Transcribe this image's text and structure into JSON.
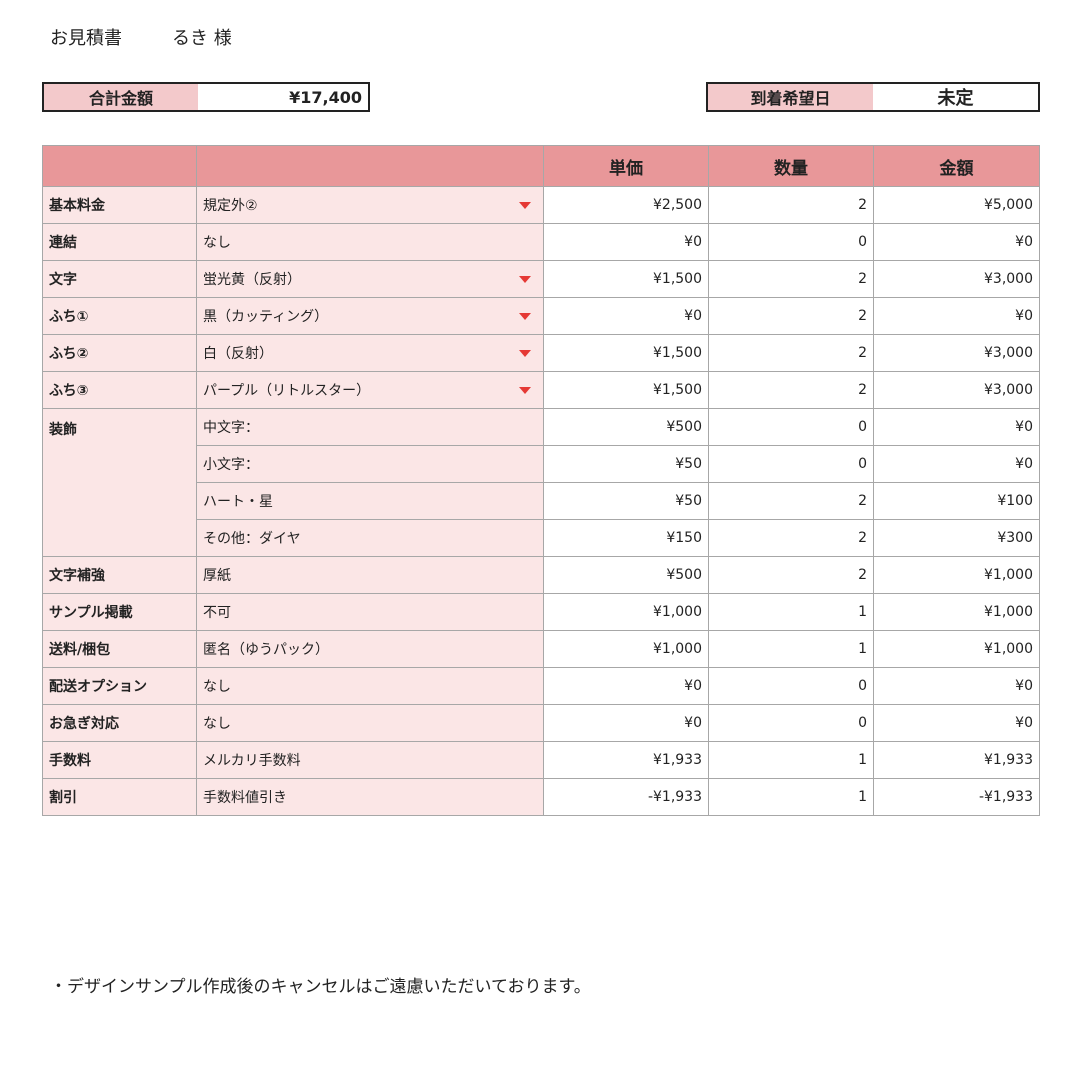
{
  "header": {
    "title": "お見積書",
    "customer": "るき 様"
  },
  "total": {
    "label": "合計金額",
    "value": "¥17,400"
  },
  "arrival": {
    "label": "到着希望日",
    "value": "未定"
  },
  "table": {
    "columns": [
      "",
      "",
      "単価",
      "数量",
      "金額"
    ],
    "rows": [
      {
        "label": "基本料金",
        "item": "規定外②",
        "dropdown": true,
        "price": "¥2,500",
        "qty": "2",
        "amount": "¥5,000"
      },
      {
        "label": "連結",
        "item": "なし",
        "dropdown": false,
        "price": "¥0",
        "qty": "0",
        "amount": "¥0"
      },
      {
        "label": "文字",
        "item": "蛍光黄（反射）",
        "dropdown": true,
        "price": "¥1,500",
        "qty": "2",
        "amount": "¥3,000"
      },
      {
        "label": "ふち①",
        "item": "黒（カッティング）",
        "dropdown": true,
        "price": "¥0",
        "qty": "2",
        "amount": "¥0"
      },
      {
        "label": "ふち②",
        "item": "白（反射）",
        "dropdown": true,
        "price": "¥1,500",
        "qty": "2",
        "amount": "¥3,000"
      },
      {
        "label": "ふち③",
        "item": "パープル（リトルスター）",
        "dropdown": true,
        "price": "¥1,500",
        "qty": "2",
        "amount": "¥3,000"
      },
      {
        "label": "装飾",
        "item": "中文字：",
        "dropdown": false,
        "price": "¥500",
        "qty": "0",
        "amount": "¥0"
      },
      {
        "label": "",
        "item": "小文字：",
        "dropdown": false,
        "price": "¥50",
        "qty": "0",
        "amount": "¥0"
      },
      {
        "label": "",
        "item": "ハート・星",
        "dropdown": false,
        "price": "¥50",
        "qty": "2",
        "amount": "¥100"
      },
      {
        "label": "",
        "item": "その他：ダイヤ",
        "dropdown": false,
        "price": "¥150",
        "qty": "2",
        "amount": "¥300"
      },
      {
        "label": "文字補強",
        "item": "厚紙",
        "dropdown": false,
        "price": "¥500",
        "qty": "2",
        "amount": "¥1,000"
      },
      {
        "label": "サンプル掲載",
        "item": "不可",
        "dropdown": false,
        "price": "¥1,000",
        "qty": "1",
        "amount": "¥1,000"
      },
      {
        "label": "送料/梱包",
        "item": "匿名（ゆうパック）",
        "dropdown": false,
        "price": "¥1,000",
        "qty": "1",
        "amount": "¥1,000"
      },
      {
        "label": "配送オプション",
        "item": "なし",
        "dropdown": false,
        "price": "¥0",
        "qty": "0",
        "amount": "¥0"
      },
      {
        "label": "お急ぎ対応",
        "item": "なし",
        "dropdown": false,
        "price": "¥0",
        "qty": "0",
        "amount": "¥0"
      },
      {
        "label": "手数料",
        "item": "メルカリ手数料",
        "dropdown": false,
        "price": "¥1,933",
        "qty": "1",
        "amount": "¥1,933"
      },
      {
        "label": "割引",
        "item": "手数料値引き",
        "dropdown": false,
        "price": "-¥1,933",
        "qty": "1",
        "amount": "-¥1,933"
      }
    ]
  },
  "note": "・デザインサンプル作成後のキャンセルはご遠慮いただいております。",
  "colors": {
    "header": "#e89799",
    "label_bg": "#fbe6e6",
    "summary_label": "#f3c9cb",
    "dropdown": "#e53935"
  }
}
